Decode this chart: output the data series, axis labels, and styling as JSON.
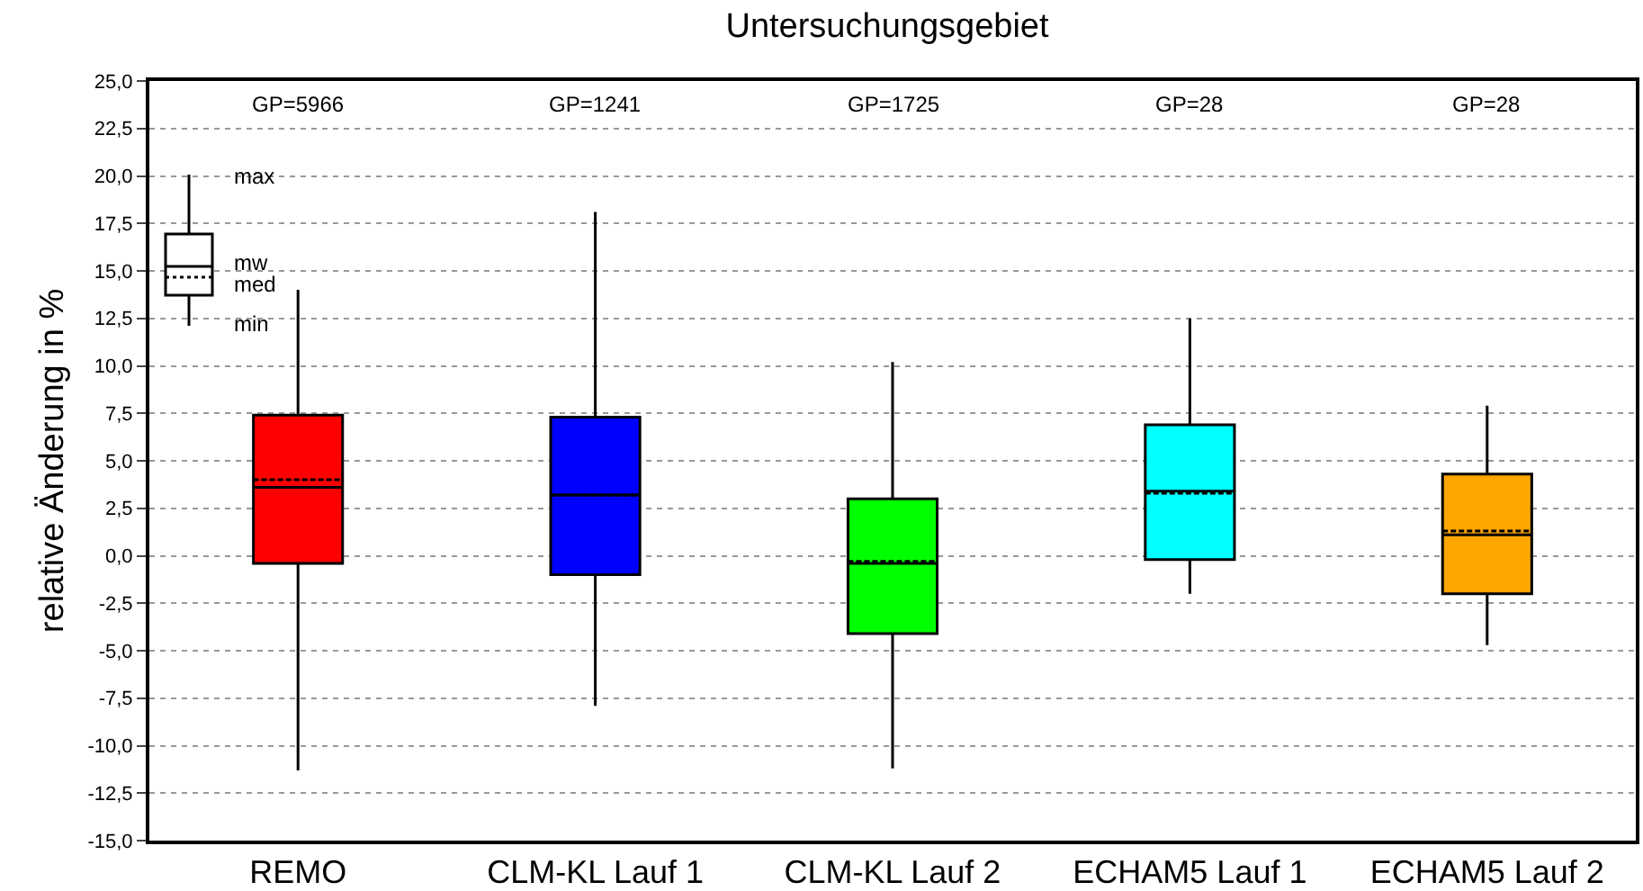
{
  "chart_data": {
    "type": "box",
    "title": "Untersuchungsgebiet",
    "ylabel": "relative Änderung in %",
    "categories": [
      "REMO",
      "CLM-KL Lauf 1",
      "CLM-KL Lauf 2",
      "ECHAM5 Lauf 1",
      "ECHAM5 Lauf 2"
    ],
    "colors": [
      "#ff0000",
      "#0000ff",
      "#00ff00",
      "#00ffff",
      "#ffa500"
    ],
    "boxes": [
      {
        "low": -11.3,
        "q1": -0.4,
        "median": 3.6,
        "q3": 7.4,
        "high": 14.0,
        "mean": 4.0
      },
      {
        "low": -7.9,
        "q1": -1.0,
        "median": 3.2,
        "q3": 7.3,
        "high": 18.1,
        "mean": 3.2
      },
      {
        "low": -11.2,
        "q1": -4.1,
        "median": -0.4,
        "q3": 3.0,
        "high": 10.2,
        "mean": -0.3
      },
      {
        "low": -2.0,
        "q1": -0.2,
        "median": 3.4,
        "q3": 6.9,
        "high": 12.5,
        "mean": 3.3
      },
      {
        "low": -4.7,
        "q1": -2.0,
        "median": 1.1,
        "q3": 4.3,
        "high": 7.9,
        "mean": 1.3
      }
    ],
    "ylim": [
      -15,
      25
    ],
    "yticks": [
      {
        "value": -15,
        "label": "-15,0"
      },
      {
        "value": -12.5,
        "label": "-12,5"
      },
      {
        "value": -10,
        "label": "-10,0"
      },
      {
        "value": -7.5,
        "label": "-7,5"
      },
      {
        "value": -5,
        "label": "-5,0"
      },
      {
        "value": -2.5,
        "label": "-2,5"
      },
      {
        "value": 0,
        "label": "0,0"
      },
      {
        "value": 2.5,
        "label": "2,5"
      },
      {
        "value": 5,
        "label": "5,0"
      },
      {
        "value": 7.5,
        "label": "7,5"
      },
      {
        "value": 10,
        "label": "10,0"
      },
      {
        "value": 12.5,
        "label": "12,5"
      },
      {
        "value": 15,
        "label": "15,0"
      },
      {
        "value": 17.5,
        "label": "17,5"
      },
      {
        "value": 20,
        "label": "20,0"
      },
      {
        "value": 22.5,
        "label": "22,5"
      },
      {
        "value": 25,
        "label": "25,0"
      }
    ],
    "grid": "y",
    "annotations": [
      "GP=5966",
      "GP=1241",
      "GP=1725",
      "GP=28",
      "GP=28",
      "max",
      "mw",
      "med",
      "min"
    ]
  }
}
